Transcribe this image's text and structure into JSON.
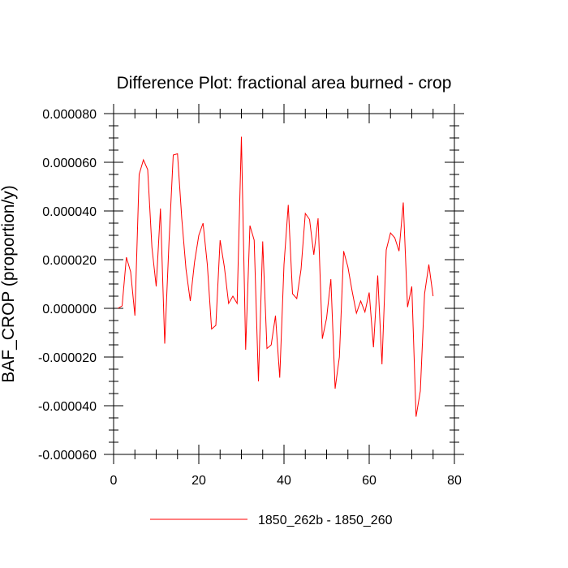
{
  "chart_data": {
    "type": "line",
    "title": "Difference Plot: fractional area burned - crop",
    "xlabel": "",
    "ylabel": "BAF_CROP  (proportion/y)",
    "xlim": [
      0,
      80
    ],
    "ylim": [
      -6e-05,
      8e-05
    ],
    "x_ticks": [
      0,
      20,
      40,
      60,
      80
    ],
    "x_tick_labels": [
      "0",
      "20",
      "40",
      "60",
      "80"
    ],
    "y_ticks": [
      -6e-05,
      -4e-05,
      -2e-05,
      0,
      2e-05,
      4e-05,
      6e-05,
      8e-05
    ],
    "y_tick_labels": [
      "-0.000060",
      "-0.000040",
      "-0.000020",
      "0.000000",
      "0.000020",
      "0.000040",
      "0.000060",
      "0.000080"
    ],
    "grid": false,
    "legend_position": "bottom",
    "series": [
      {
        "name": "1850_262b - 1850_260",
        "color": "#ff0000",
        "x": [
          1,
          2,
          3,
          4,
          5,
          6,
          7,
          8,
          9,
          10,
          11,
          12,
          13,
          14,
          15,
          16,
          17,
          18,
          19,
          20,
          21,
          22,
          23,
          24,
          25,
          26,
          27,
          28,
          29,
          30,
          31,
          32,
          33,
          34,
          35,
          36,
          37,
          38,
          39,
          40,
          41,
          42,
          43,
          44,
          45,
          46,
          47,
          48,
          49,
          50,
          51,
          52,
          53,
          54,
          55,
          56,
          57,
          58,
          59,
          60,
          61,
          62,
          63,
          64,
          65,
          66,
          67,
          68,
          69,
          70,
          71,
          72,
          73,
          74,
          75
        ],
        "y": [
          0.0,
          1e-06,
          2.1e-05,
          1.5e-05,
          -3e-06,
          5.5e-05,
          6.1e-05,
          5.7e-05,
          2.5e-05,
          9e-06,
          4.1e-05,
          -1.45e-05,
          2.7e-05,
          6.3e-05,
          6.35e-05,
          3.7e-05,
          1.6e-05,
          3e-06,
          1.9e-05,
          3e-05,
          3.5e-05,
          1.8e-05,
          -8.5e-06,
          -7e-06,
          2.8e-05,
          1.7e-05,
          2e-06,
          5e-06,
          2e-06,
          7.05e-05,
          -1.7e-05,
          3.4e-05,
          2.8e-05,
          -3e-05,
          2.75e-05,
          -1.65e-05,
          -1.5e-05,
          -3e-06,
          -2.85e-05,
          1.8e-05,
          4.25e-05,
          6e-06,
          4e-06,
          1.6e-05,
          3.9e-05,
          3.65e-05,
          2.2e-05,
          3.7e-05,
          -1.25e-05,
          -4e-06,
          1.2e-05,
          -3.3e-05,
          -2e-05,
          2.35e-05,
          1.7e-05,
          7e-06,
          -2e-06,
          3e-06,
          -1.5e-06,
          6.5e-06,
          -1.6e-05,
          1.35e-05,
          -2.3e-05,
          2.4e-05,
          3.1e-05,
          2.9e-05,
          2.35e-05,
          4.35e-05,
          5e-07,
          9e-06,
          -4.45e-05,
          -3.4e-05,
          6e-06,
          1.8e-05,
          5e-06
        ]
      }
    ]
  }
}
